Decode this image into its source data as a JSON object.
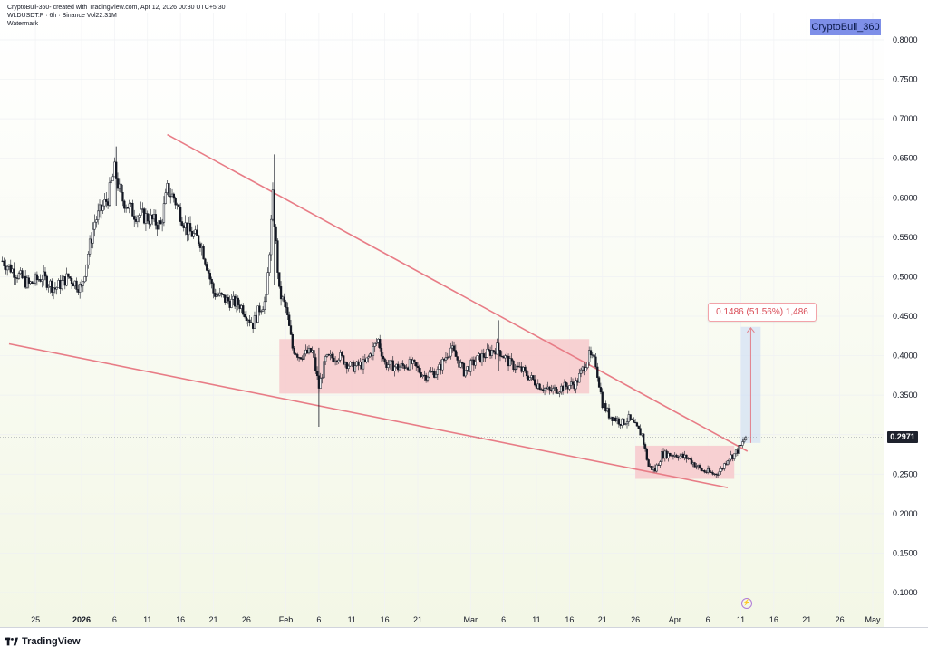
{
  "header": {
    "meta_line": "CryptoBull-360- created with TradingView.com, Apr 12, 2026 00:30 UTC+5:30",
    "symbol_line": "WLDUSDT.P · 6h · Binance  Vol22.31M",
    "watermark_label": "Watermark"
  },
  "badge": {
    "label": "CryptoBull_360"
  },
  "price_tag": {
    "label": "0.2971"
  },
  "measure": {
    "label": "0.1486 (51.56%) 1,486"
  },
  "footer": {
    "logo_text": "TradingView",
    "event_icon": "lightning-icon"
  },
  "colors": {
    "candle": "#131722",
    "trendline": "#e87c86",
    "zone_fill": "#f7c9cd",
    "measure_fill": "#c9d8f5",
    "measure_line": "#e27e88",
    "background_top": "#ffffff",
    "background_bottom": "#f3f7e6"
  },
  "chart_data": {
    "type": "candlestick",
    "title": "",
    "xlabel": "",
    "ylabel": "",
    "ylim": [
      0.06,
      0.84
    ],
    "y_ticks": [
      "0.1000",
      "0.1500",
      "0.2000",
      "0.2500",
      "0.3000",
      "0.3500",
      "0.4000",
      "0.4500",
      "0.5000",
      "0.5500",
      "0.6000",
      "0.6500",
      "0.7000",
      "0.7500",
      "0.8000"
    ],
    "x_ticks": [
      {
        "label": "25",
        "date": "2025-12-25"
      },
      {
        "label": "2026",
        "date": "2026-01-01",
        "bold": true
      },
      {
        "label": "6",
        "date": "2026-01-06"
      },
      {
        "label": "11",
        "date": "2026-01-11"
      },
      {
        "label": "16",
        "date": "2026-01-16"
      },
      {
        "label": "21",
        "date": "2026-01-21"
      },
      {
        "label": "26",
        "date": "2026-01-26"
      },
      {
        "label": "Feb",
        "date": "2026-02-01"
      },
      {
        "label": "6",
        "date": "2026-02-06"
      },
      {
        "label": "11",
        "date": "2026-02-11"
      },
      {
        "label": "16",
        "date": "2026-02-16"
      },
      {
        "label": "21",
        "date": "2026-02-21"
      },
      {
        "label": "Mar",
        "date": "2026-03-01"
      },
      {
        "label": "6",
        "date": "2026-03-06"
      },
      {
        "label": "11",
        "date": "2026-03-11"
      },
      {
        "label": "16",
        "date": "2026-03-16"
      },
      {
        "label": "21",
        "date": "2026-03-21"
      },
      {
        "label": "26",
        "date": "2026-03-26"
      },
      {
        "label": "Apr",
        "date": "2026-04-01"
      },
      {
        "label": "6",
        "date": "2026-04-06"
      },
      {
        "label": "11",
        "date": "2026-04-11"
      },
      {
        "label": "16",
        "date": "2026-04-16"
      },
      {
        "label": "21",
        "date": "2026-04-21"
      },
      {
        "label": "26",
        "date": "2026-04-26"
      },
      {
        "label": "May",
        "date": "2026-05-01"
      }
    ],
    "last_price": 0.2971,
    "price_path": [
      [
        "2025-12-20",
        0.52
      ],
      [
        "2025-12-22",
        0.505
      ],
      [
        "2025-12-24",
        0.49
      ],
      [
        "2025-12-26",
        0.5
      ],
      [
        "2025-12-28",
        0.485
      ],
      [
        "2025-12-30",
        0.5
      ],
      [
        "2026-01-01",
        0.485
      ],
      [
        "2026-01-02",
        0.53
      ],
      [
        "2026-01-03",
        0.57
      ],
      [
        "2026-01-05",
        0.6
      ],
      [
        "2026-01-06",
        0.635
      ],
      [
        "2026-01-07",
        0.6
      ],
      [
        "2026-01-09",
        0.58
      ],
      [
        "2026-01-11",
        0.575
      ],
      [
        "2026-01-13",
        0.565
      ],
      [
        "2026-01-14",
        0.61
      ],
      [
        "2026-01-15",
        0.6
      ],
      [
        "2026-01-17",
        0.56
      ],
      [
        "2026-01-19",
        0.545
      ],
      [
        "2026-01-20",
        0.515
      ],
      [
        "2026-01-21",
        0.48
      ],
      [
        "2026-01-23",
        0.47
      ],
      [
        "2026-01-25",
        0.465
      ],
      [
        "2026-01-27",
        0.44
      ],
      [
        "2026-01-28",
        0.46
      ],
      [
        "2026-01-29",
        0.47
      ],
      [
        "2026-01-30",
        0.6
      ],
      [
        "2026-01-31",
        0.48
      ],
      [
        "2026-02-01",
        0.46
      ],
      [
        "2026-02-02",
        0.41
      ],
      [
        "2026-02-03",
        0.4
      ],
      [
        "2026-02-05",
        0.405
      ],
      [
        "2026-02-06",
        0.36
      ],
      [
        "2026-02-07",
        0.395
      ],
      [
        "2026-02-09",
        0.4
      ],
      [
        "2026-02-11",
        0.385
      ],
      [
        "2026-02-13",
        0.39
      ],
      [
        "2026-02-15",
        0.42
      ],
      [
        "2026-02-16",
        0.39
      ],
      [
        "2026-02-18",
        0.385
      ],
      [
        "2026-02-20",
        0.39
      ],
      [
        "2026-02-22",
        0.375
      ],
      [
        "2026-02-24",
        0.38
      ],
      [
        "2026-02-26",
        0.41
      ],
      [
        "2026-02-28",
        0.38
      ],
      [
        "2026-03-02",
        0.395
      ],
      [
        "2026-03-05",
        0.41
      ],
      [
        "2026-03-07",
        0.39
      ],
      [
        "2026-03-09",
        0.38
      ],
      [
        "2026-03-11",
        0.365
      ],
      [
        "2026-03-13",
        0.355
      ],
      [
        "2026-03-15",
        0.36
      ],
      [
        "2026-03-17",
        0.365
      ],
      [
        "2026-03-19",
        0.4
      ],
      [
        "2026-03-20",
        0.39
      ],
      [
        "2026-03-21",
        0.34
      ],
      [
        "2026-03-22",
        0.325
      ],
      [
        "2026-03-24",
        0.315
      ],
      [
        "2026-03-25",
        0.32
      ],
      [
        "2026-03-27",
        0.3
      ],
      [
        "2026-03-28",
        0.26
      ],
      [
        "2026-03-29",
        0.255
      ],
      [
        "2026-03-30",
        0.275
      ],
      [
        "2026-04-01",
        0.275
      ],
      [
        "2026-04-03",
        0.27
      ],
      [
        "2026-04-05",
        0.255
      ],
      [
        "2026-04-07",
        0.25
      ],
      [
        "2026-04-08",
        0.255
      ],
      [
        "2026-04-09",
        0.27
      ],
      [
        "2026-04-10",
        0.275
      ],
      [
        "2026-04-11",
        0.285
      ],
      [
        "2026-04-11T18:00",
        0.2971
      ]
    ],
    "annotations": [
      {
        "kind": "trendline",
        "from": [
          "2026-01-14",
          0.68
        ],
        "to": [
          "2026-04-12",
          0.279
        ]
      },
      {
        "kind": "trendline",
        "from": [
          "2025-12-21",
          0.415
        ],
        "to": [
          "2026-04-09",
          0.233
        ]
      },
      {
        "kind": "zone",
        "x0": "2026-01-31",
        "x1": "2026-03-19",
        "y0": 0.352,
        "y1": 0.421
      },
      {
        "kind": "zone",
        "x0": "2026-03-26",
        "x1": "2026-04-10",
        "y0": 0.244,
        "y1": 0.286
      },
      {
        "kind": "measure",
        "x0": "2026-04-11",
        "x1": "2026-04-14",
        "y0": 0.2895,
        "y1": 0.4365,
        "label": "0.1486 (51.56%) 1,486"
      }
    ]
  }
}
